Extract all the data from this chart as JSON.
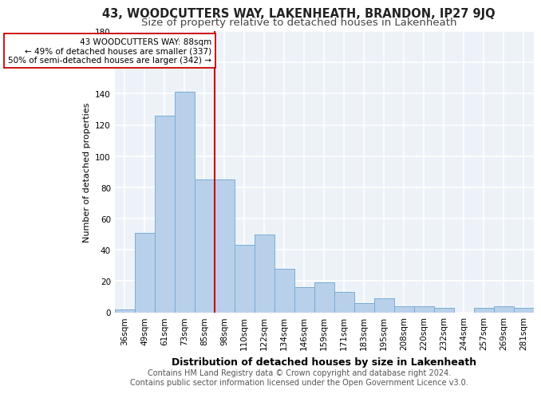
{
  "title1": "43, WOODCUTTERS WAY, LAKENHEATH, BRANDON, IP27 9JQ",
  "title2": "Size of property relative to detached houses in Lakenheath",
  "xlabel": "Distribution of detached houses by size in Lakenheath",
  "ylabel": "Number of detached properties",
  "footer1": "Contains HM Land Registry data © Crown copyright and database right 2024.",
  "footer2": "Contains public sector information licensed under the Open Government Licence v3.0.",
  "categories": [
    "36sqm",
    "49sqm",
    "61sqm",
    "73sqm",
    "85sqm",
    "98sqm",
    "110sqm",
    "122sqm",
    "134sqm",
    "146sqm",
    "159sqm",
    "171sqm",
    "183sqm",
    "195sqm",
    "208sqm",
    "220sqm",
    "232sqm",
    "244sqm",
    "257sqm",
    "269sqm",
    "281sqm"
  ],
  "values": [
    2,
    51,
    126,
    141,
    85,
    85,
    43,
    50,
    28,
    16,
    19,
    13,
    6,
    9,
    4,
    4,
    3,
    0,
    3,
    4,
    3
  ],
  "bar_color": "#b8d0ea",
  "bar_edge_color": "#7aadd4",
  "vline_x": 4.5,
  "vline_color": "#cc0000",
  "annotation_text": "43 WOODCUTTERS WAY: 88sqm\n← 49% of detached houses are smaller (337)\n50% of semi-detached houses are larger (342) →",
  "annotation_box_color": "#ffffff",
  "annotation_box_edge_color": "#cc0000",
  "ylim": [
    0,
    180
  ],
  "yticks": [
    0,
    20,
    40,
    60,
    80,
    100,
    120,
    140,
    160,
    180
  ],
  "bg_color": "#edf2f9",
  "grid_color": "#ffffff",
  "title1_fontsize": 10.5,
  "title2_fontsize": 9.5,
  "xlabel_fontsize": 9,
  "ylabel_fontsize": 8,
  "tick_fontsize": 7.5,
  "annot_fontsize": 7.5,
  "footer_fontsize": 7
}
